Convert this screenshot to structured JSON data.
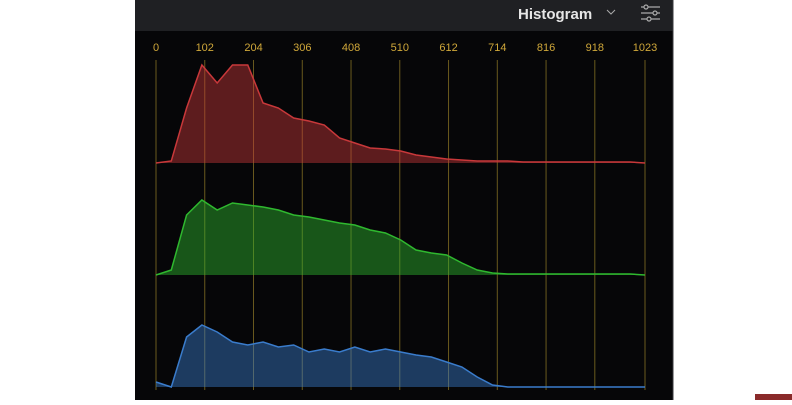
{
  "header": {
    "title": "Histogram"
  },
  "chart_data": {
    "type": "area",
    "x": [
      0,
      32,
      64,
      96,
      128,
      160,
      192,
      224,
      256,
      288,
      320,
      352,
      384,
      416,
      448,
      480,
      512,
      544,
      576,
      608,
      640,
      672,
      704,
      736,
      768,
      800,
      832,
      864,
      896,
      928,
      960,
      992,
      1023
    ],
    "xlim": [
      0,
      1023
    ],
    "xticks": [
      0,
      102,
      204,
      306,
      408,
      510,
      612,
      714,
      816,
      918,
      1023
    ],
    "ylim": [
      0,
      100
    ],
    "grid": true,
    "series": [
      {
        "color": "#c8383a",
        "values": [
          0,
          2,
          55,
          98,
          80,
          98,
          98,
          60,
          55,
          45,
          42,
          38,
          25,
          20,
          15,
          14,
          12,
          8,
          6,
          4,
          3,
          2,
          2,
          2,
          1,
          1,
          1,
          1,
          1,
          1,
          1,
          1,
          0
        ]
      },
      {
        "color": "#2fb82f",
        "values": [
          0,
          5,
          60,
          75,
          65,
          72,
          70,
          68,
          65,
          60,
          58,
          55,
          52,
          50,
          45,
          42,
          35,
          25,
          22,
          20,
          12,
          5,
          2,
          1,
          1,
          1,
          1,
          1,
          1,
          1,
          1,
          1,
          0
        ]
      },
      {
        "color": "#3a7ccc",
        "values": [
          5,
          0,
          50,
          62,
          55,
          45,
          42,
          45,
          40,
          42,
          35,
          38,
          35,
          40,
          35,
          38,
          35,
          32,
          30,
          25,
          20,
          10,
          2,
          0,
          0,
          0,
          0,
          0,
          0,
          0,
          0,
          0,
          0
        ]
      }
    ]
  }
}
